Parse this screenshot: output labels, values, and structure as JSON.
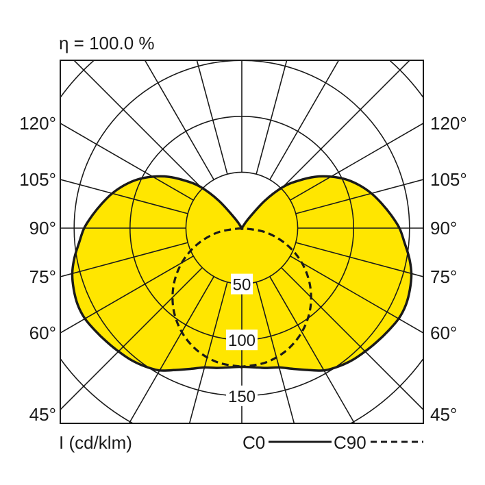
{
  "chart_data": {
    "type": "polar",
    "title": "η = 100.0 %",
    "unit_label": "I (cd/klm)",
    "radial_ticks": [
      50,
      100,
      150
    ],
    "radial_grid": [
      50,
      100,
      150,
      200
    ],
    "angle_labels_left": [
      "120°",
      "105°",
      "90°",
      "75°",
      "60°",
      "45°"
    ],
    "angle_labels_right": [
      "120°",
      "105°",
      "90°",
      "75°",
      "60°",
      "45°"
    ],
    "angle_label_values": [
      120,
      105,
      90,
      75,
      60,
      45
    ],
    "spoke_step_deg": 15,
    "colors": {
      "fill": "#FFE600",
      "line": "#1a1a1a"
    },
    "series": [
      {
        "name": "C0",
        "style": "solid",
        "filled": true,
        "symmetric": true,
        "angles": [
          0,
          5,
          10,
          15,
          20,
          25,
          30,
          35,
          40,
          45,
          50,
          55,
          60,
          65,
          70,
          75,
          80,
          85,
          90,
          95,
          100,
          105,
          110,
          115,
          120,
          125,
          130,
          135,
          140,
          145,
          150,
          180
        ],
        "values": [
          124,
          125,
          127,
          129,
          134,
          140,
          147,
          151,
          154,
          156,
          158,
          160,
          162,
          162,
          160,
          157,
          152,
          146,
          141,
          134,
          127,
          120,
          112,
          103,
          92,
          80,
          66,
          52,
          32,
          10,
          0,
          0
        ]
      },
      {
        "name": "C90",
        "style": "dashed",
        "filled": false,
        "symmetric": true,
        "angles": [
          0,
          10,
          20,
          30,
          40,
          50,
          60,
          70,
          80,
          90
        ],
        "values": [
          124,
          122.1,
          116.5,
          107.4,
          95,
          79.7,
          62,
          42.4,
          21.5,
          0
        ]
      }
    ]
  }
}
